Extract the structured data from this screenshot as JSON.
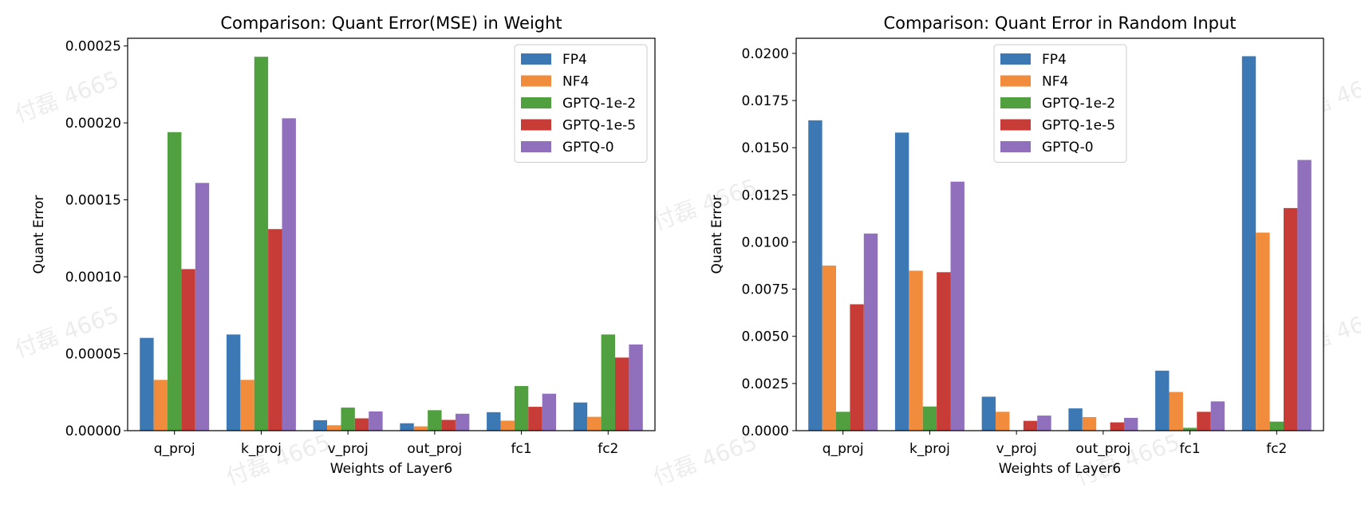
{
  "watermark_text": "付磊 4665",
  "colors": {
    "FP4": "#3c78b4",
    "NF4": "#f08c3c",
    "GPTQ-1e-2": "#50a040",
    "GPTQ-1e-5": "#c83c37",
    "GPTQ-0": "#9070bc"
  },
  "chart_data": [
    {
      "type": "bar",
      "title": "Comparison: Quant Error(MSE) in Weight",
      "xlabel": "Weights of Layer6",
      "ylabel": "Quant Error",
      "categories": [
        "q_proj",
        "k_proj",
        "v_proj",
        "out_proj",
        "fc1",
        "fc2"
      ],
      "ylim": [
        0,
        0.000255
      ],
      "yticks": [
        "0.00000",
        "0.00005",
        "0.00010",
        "0.00015",
        "0.00020",
        "0.00025"
      ],
      "ytick_values": [
        0,
        5e-05,
        0.0001,
        0.00015,
        0.0002,
        0.00025
      ],
      "legend_position": "top-right",
      "grid": false,
      "series": [
        {
          "name": "FP4",
          "values": [
            6.03e-05,
            6.25e-05,
            6.8e-06,
            4.8e-06,
            1.2e-05,
            1.83e-05
          ]
        },
        {
          "name": "NF4",
          "values": [
            3.3e-05,
            3.3e-05,
            3.5e-06,
            2.8e-06,
            6.5e-06,
            9e-06
          ]
        },
        {
          "name": "GPTQ-1e-2",
          "values": [
            0.000194,
            0.000243,
            1.5e-05,
            1.33e-05,
            2.9e-05,
            6.25e-05
          ]
        },
        {
          "name": "GPTQ-1e-5",
          "values": [
            0.000105,
            0.000131,
            8e-06,
            7e-06,
            1.55e-05,
            4.75e-05
          ]
        },
        {
          "name": "GPTQ-0",
          "values": [
            0.000161,
            0.000203,
            1.25e-05,
            1.1e-05,
            2.4e-05,
            5.6e-05
          ]
        }
      ]
    },
    {
      "type": "bar",
      "title": "Comparison: Quant Error in Random Input",
      "xlabel": "Weights of Layer6",
      "ylabel": "Quant Error",
      "categories": [
        "q_proj",
        "k_proj",
        "v_proj",
        "out_proj",
        "fc1",
        "fc2"
      ],
      "ylim": [
        0,
        0.0208
      ],
      "yticks": [
        "0.0000",
        "0.0025",
        "0.0050",
        "0.0075",
        "0.0100",
        "0.0125",
        "0.0150",
        "0.0175",
        "0.0200"
      ],
      "ytick_values": [
        0,
        0.0025,
        0.005,
        0.0075,
        0.01,
        0.0125,
        0.015,
        0.0175,
        0.02
      ],
      "legend_position": "top-center",
      "grid": false,
      "series": [
        {
          "name": "FP4",
          "values": [
            0.01645,
            0.0158,
            0.0018,
            0.00118,
            0.00318,
            0.01985
          ]
        },
        {
          "name": "NF4",
          "values": [
            0.00875,
            0.00848,
            0.001,
            0.00072,
            0.00205,
            0.0105
          ]
        },
        {
          "name": "GPTQ-1e-2",
          "values": [
            0.001,
            0.00128,
            2e-05,
            2e-05,
            0.00015,
            0.00048
          ]
        },
        {
          "name": "GPTQ-1e-5",
          "values": [
            0.0067,
            0.0084,
            0.00052,
            0.00044,
            0.001,
            0.0118
          ]
        },
        {
          "name": "GPTQ-0",
          "values": [
            0.01045,
            0.0132,
            0.0008,
            0.00068,
            0.00155,
            0.01435
          ]
        }
      ]
    }
  ]
}
